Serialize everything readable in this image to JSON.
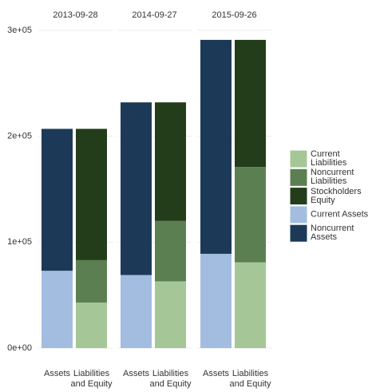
{
  "chart_data": {
    "type": "bar",
    "stacked": true,
    "facets": [
      "2013-09-28",
      "2014-09-27",
      "2015-09-26"
    ],
    "categories": [
      "Assets",
      "Liabilities\nand Equity"
    ],
    "ylim": [
      0,
      300000
    ],
    "yticks": [
      {
        "value": 0,
        "label": "0e+00"
      },
      {
        "value": 100000,
        "label": "1e+05"
      },
      {
        "value": 200000,
        "label": "2e+05"
      },
      {
        "value": 300000,
        "label": "3e+05"
      }
    ],
    "grid": true,
    "legend": "right",
    "series": [
      {
        "name": "Current\nLiabilities",
        "color": "#a5c798",
        "values": [
          [
            null,
            43000
          ],
          [
            null,
            63000
          ],
          [
            null,
            81000
          ]
        ]
      },
      {
        "name": "Noncurrent\nLiabilities",
        "color": "#5c7f52",
        "values": [
          [
            null,
            40000
          ],
          [
            null,
            57000
          ],
          [
            null,
            90000
          ]
        ]
      },
      {
        "name": "Stockholders\nEquity",
        "color": "#233d1b",
        "values": [
          [
            null,
            124000
          ],
          [
            null,
            112000
          ],
          [
            null,
            120000
          ]
        ]
      },
      {
        "name": "Current Assets",
        "color": "#a3bde0",
        "values": [
          [
            73000,
            null
          ],
          [
            69000,
            null
          ],
          [
            89000,
            null
          ]
        ]
      },
      {
        "name": "Noncurrent\nAssets",
        "color": "#1c3a57",
        "values": [
          [
            134000,
            null
          ],
          [
            163000,
            null
          ],
          [
            202000,
            null
          ]
        ]
      }
    ]
  }
}
